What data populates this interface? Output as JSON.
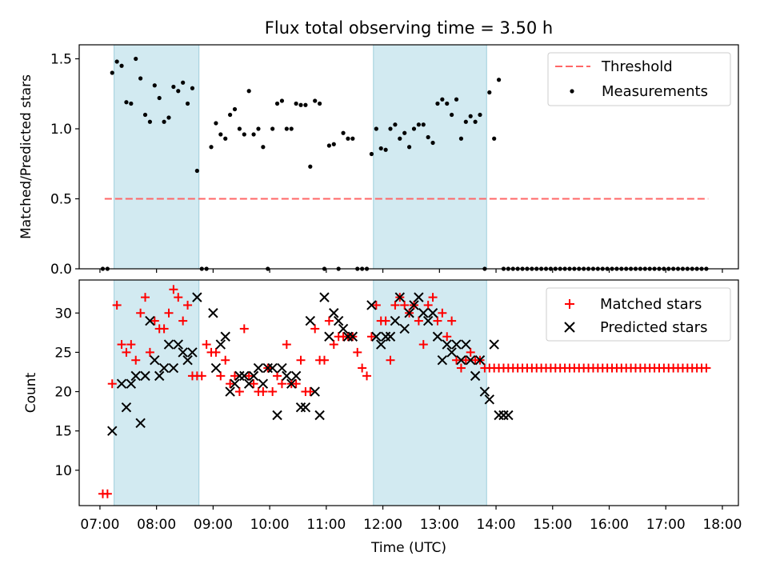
{
  "title": "Flux total observing time = 3.50 h",
  "xlabel": "Time (UTC)",
  "colors": {
    "shade": "#add8e6",
    "threshold": "#ff6666",
    "measurements": "#000000",
    "matched": "#ff0000",
    "predicted": "#000000"
  },
  "chart_data": [
    {
      "type": "scatter",
      "ylabel": "Matched/Predicted stars",
      "ylim": [
        0,
        1.6
      ],
      "xlim": [
        "06:38",
        "18:17"
      ],
      "yticks": [
        0.0,
        0.5,
        1.0,
        1.5
      ],
      "yticklabels": [
        "0.0",
        "0.5",
        "1.0",
        "1.5"
      ],
      "shaded_intervals": [
        [
          "07:15",
          "08:45"
        ],
        [
          "11:50",
          "13:50"
        ]
      ],
      "legend": {
        "placement": "top-right",
        "entries": [
          "Threshold",
          "Measurements"
        ]
      },
      "series": [
        {
          "name": "Threshold",
          "style": "dashed-line",
          "x": [
            "07:05",
            "17:45"
          ],
          "y": [
            0.5,
            0.5
          ]
        },
        {
          "name": "Measurements",
          "style": "dot",
          "x": [
            "07:03",
            "07:08",
            "07:13",
            "07:18",
            "07:23",
            "07:28",
            "07:33",
            "07:38",
            "07:43",
            "07:48",
            "07:53",
            "07:58",
            "08:03",
            "08:08",
            "08:13",
            "08:18",
            "08:23",
            "08:28",
            "08:33",
            "08:38",
            "08:43",
            "08:48",
            "08:53",
            "08:58",
            "09:03",
            "09:08",
            "09:13",
            "09:18",
            "09:23",
            "09:28",
            "09:33",
            "09:38",
            "09:43",
            "09:48",
            "09:53",
            "09:58",
            "10:03",
            "10:08",
            "10:13",
            "10:18",
            "10:23",
            "10:28",
            "10:33",
            "10:38",
            "10:43",
            "10:48",
            "10:53",
            "10:58",
            "11:03",
            "11:08",
            "11:13",
            "11:18",
            "11:23",
            "11:28",
            "11:33",
            "11:38",
            "11:43",
            "11:48",
            "11:53",
            "11:58",
            "12:03",
            "12:08",
            "12:13",
            "12:18",
            "12:23",
            "12:28",
            "12:33",
            "12:38",
            "12:43",
            "12:48",
            "12:53",
            "12:58",
            "13:03",
            "13:08",
            "13:13",
            "13:18",
            "13:23",
            "13:28",
            "13:33",
            "13:38",
            "13:43",
            "13:48",
            "13:53",
            "13:58",
            "14:03",
            "14:08",
            "14:13",
            "14:18",
            "14:23",
            "14:28",
            "14:33",
            "14:38",
            "14:43",
            "14:48",
            "14:53",
            "14:58",
            "15:03",
            "15:08",
            "15:13",
            "15:18",
            "15:23",
            "15:28",
            "15:33",
            "15:38",
            "15:43",
            "15:48",
            "15:53",
            "15:58",
            "16:03",
            "16:08",
            "16:13",
            "16:18",
            "16:23",
            "16:28",
            "16:33",
            "16:38",
            "16:43",
            "16:48",
            "16:53",
            "16:58",
            "17:03",
            "17:08",
            "17:13",
            "17:18",
            "17:23",
            "17:28",
            "17:33",
            "17:38",
            "17:43"
          ],
          "y": [
            0,
            0,
            1.4,
            1.48,
            1.45,
            1.19,
            1.18,
            1.5,
            1.36,
            1.1,
            1.05,
            1.31,
            1.22,
            1.05,
            1.08,
            1.3,
            1.27,
            1.33,
            1.18,
            1.29,
            0.7,
            0,
            0,
            0.87,
            1.04,
            0.96,
            0.93,
            1.1,
            1.14,
            1.0,
            0.96,
            1.27,
            0.96,
            1.0,
            0.87,
            0,
            1.0,
            1.18,
            1.2,
            1.0,
            1.0,
            1.18,
            1.17,
            1.17,
            0.73,
            1.2,
            1.18,
            0,
            0.88,
            0.89,
            0,
            0.97,
            0.93,
            0.93,
            0,
            0,
            0,
            0.82,
            1.0,
            0.86,
            0.85,
            1.0,
            1.03,
            0.93,
            0.97,
            0.87,
            1.0,
            1.03,
            1.03,
            0.94,
            0.9,
            1.18,
            1.21,
            1.18,
            1.1,
            1.21,
            0.93,
            1.05,
            1.09,
            1.05,
            1.1,
            0,
            1.26,
            0.93,
            1.35,
            0,
            0,
            0,
            0,
            0,
            0,
            0,
            0,
            0,
            0,
            0,
            0,
            0,
            0,
            0,
            0,
            0,
            0,
            0,
            0,
            0,
            0,
            0,
            0,
            0,
            0,
            0,
            0,
            0,
            0,
            0,
            0,
            0,
            0,
            0,
            0,
            0,
            0,
            0,
            0,
            0,
            0,
            0,
            0
          ]
        }
      ]
    },
    {
      "type": "scatter",
      "ylabel": "Count",
      "ylim": [
        5.5,
        34.2
      ],
      "xlim": [
        "06:38",
        "18:17"
      ],
      "yticks": [
        10,
        15,
        20,
        25,
        30
      ],
      "yticklabels": [
        "10",
        "15",
        "20",
        "25",
        "30"
      ],
      "xticklabels": [
        "07:00",
        "08:00",
        "09:00",
        "10:00",
        "11:00",
        "12:00",
        "13:00",
        "14:00",
        "15:00",
        "16:00",
        "17:00",
        "18:00"
      ],
      "shaded_intervals": [
        [
          "07:15",
          "08:45"
        ],
        [
          "11:50",
          "13:50"
        ]
      ],
      "legend": {
        "placement": "top-right",
        "entries": [
          "Matched stars",
          "Predicted stars"
        ]
      },
      "series": [
        {
          "name": "Matched stars",
          "style": "plus",
          "x": [
            "07:03",
            "07:08",
            "07:13",
            "07:18",
            "07:23",
            "07:28",
            "07:33",
            "07:38",
            "07:43",
            "07:48",
            "07:53",
            "07:58",
            "08:03",
            "08:08",
            "08:13",
            "08:18",
            "08:23",
            "08:28",
            "08:33",
            "08:38",
            "08:43",
            "08:48",
            "08:53",
            "08:58",
            "09:03",
            "09:08",
            "09:13",
            "09:18",
            "09:23",
            "09:28",
            "09:33",
            "09:38",
            "09:43",
            "09:48",
            "09:53",
            "09:58",
            "10:03",
            "10:08",
            "10:13",
            "10:18",
            "10:23",
            "10:28",
            "10:33",
            "10:38",
            "10:43",
            "10:48",
            "10:53",
            "10:58",
            "11:03",
            "11:08",
            "11:13",
            "11:18",
            "11:23",
            "11:28",
            "11:33",
            "11:38",
            "11:43",
            "11:48",
            "11:53",
            "11:58",
            "12:03",
            "12:08",
            "12:13",
            "12:18",
            "12:23",
            "12:28",
            "12:33",
            "12:38",
            "12:43",
            "12:48",
            "12:53",
            "12:58",
            "13:03",
            "13:08",
            "13:13",
            "13:18",
            "13:23",
            "13:28",
            "13:33",
            "13:38",
            "13:43",
            "13:48",
            "13:53",
            "13:58",
            "14:03",
            "14:08",
            "14:13",
            "14:18",
            "14:23",
            "14:28",
            "14:33",
            "14:38",
            "14:43",
            "14:48",
            "14:53",
            "14:58",
            "15:03",
            "15:08",
            "15:13",
            "15:18",
            "15:23",
            "15:28",
            "15:33",
            "15:38",
            "15:43",
            "15:48",
            "15:53",
            "15:58",
            "16:03",
            "16:08",
            "16:13",
            "16:18",
            "16:23",
            "16:28",
            "16:33",
            "16:38",
            "16:43",
            "16:48",
            "16:53",
            "16:58",
            "17:03",
            "17:08",
            "17:13",
            "17:18",
            "17:23",
            "17:28",
            "17:33",
            "17:38",
            "17:43"
          ],
          "y": [
            7,
            7,
            21,
            31,
            26,
            25,
            26,
            24,
            30,
            32,
            25,
            29,
            28,
            28,
            30,
            33,
            32,
            29,
            31,
            22,
            22,
            22,
            26,
            25,
            25,
            22,
            24,
            21,
            22,
            20,
            28,
            22,
            21,
            20,
            20,
            23,
            20,
            22,
            21,
            26,
            21,
            21,
            24,
            20,
            20,
            28,
            24,
            24,
            29,
            26,
            27,
            27,
            27,
            27,
            25,
            23,
            22,
            27,
            31,
            29,
            29,
            24,
            31,
            32,
            31,
            30,
            31,
            29,
            26,
            31,
            32,
            29,
            30,
            27,
            29,
            24,
            23,
            24,
            25,
            24,
            24,
            23,
            23,
            23,
            23,
            23,
            23,
            23,
            23,
            23,
            23,
            23,
            23,
            23,
            23,
            23,
            23,
            23,
            23,
            23,
            23,
            23,
            23,
            23,
            23,
            23,
            23,
            23,
            23,
            23,
            23,
            23,
            23,
            23,
            23,
            23,
            23,
            23,
            23,
            23,
            23,
            23,
            23,
            23,
            23,
            23,
            23,
            23,
            23
          ]
        },
        {
          "name": "Predicted stars",
          "style": "cross",
          "x": [
            "07:13",
            "07:23",
            "07:28",
            "07:33",
            "07:38",
            "07:43",
            "07:48",
            "07:53",
            "07:58",
            "08:03",
            "08:08",
            "08:13",
            "08:18",
            "08:23",
            "08:28",
            "08:33",
            "08:38",
            "08:43",
            "09:00",
            "09:03",
            "09:08",
            "09:13",
            "09:18",
            "09:23",
            "09:28",
            "09:33",
            "09:38",
            "09:43",
            "09:48",
            "09:53",
            "09:58",
            "10:03",
            "10:08",
            "10:13",
            "10:18",
            "10:23",
            "10:28",
            "10:33",
            "10:38",
            "10:43",
            "10:48",
            "10:53",
            "10:58",
            "11:03",
            "11:08",
            "11:13",
            "11:18",
            "11:23",
            "11:28",
            "11:48",
            "11:53",
            "11:58",
            "12:03",
            "12:08",
            "12:13",
            "12:18",
            "12:23",
            "12:28",
            "12:33",
            "12:38",
            "12:43",
            "12:48",
            "12:53",
            "12:58",
            "13:03",
            "13:08",
            "13:13",
            "13:18",
            "13:23",
            "13:28",
            "13:33",
            "13:38",
            "13:43",
            "13:48",
            "13:53",
            "13:58",
            "14:03",
            "14:08",
            "14:13"
          ],
          "y": [
            15,
            21,
            18,
            21,
            22,
            16,
            22,
            29,
            24,
            22,
            23,
            26,
            23,
            26,
            25,
            24,
            25,
            32,
            30,
            23,
            26,
            27,
            20,
            21,
            22,
            22,
            21,
            22,
            23,
            21,
            23,
            23,
            17,
            23,
            22,
            21,
            22,
            18,
            18,
            29,
            20,
            17,
            32,
            27,
            30,
            29,
            28,
            27,
            27,
            31,
            27,
            26,
            27,
            27,
            29,
            32,
            28,
            30,
            31,
            32,
            30,
            29,
            30,
            27,
            24,
            26,
            25,
            26,
            24,
            26,
            24,
            22,
            24,
            20,
            19,
            26,
            17,
            17,
            17
          ]
        }
      ]
    }
  ]
}
